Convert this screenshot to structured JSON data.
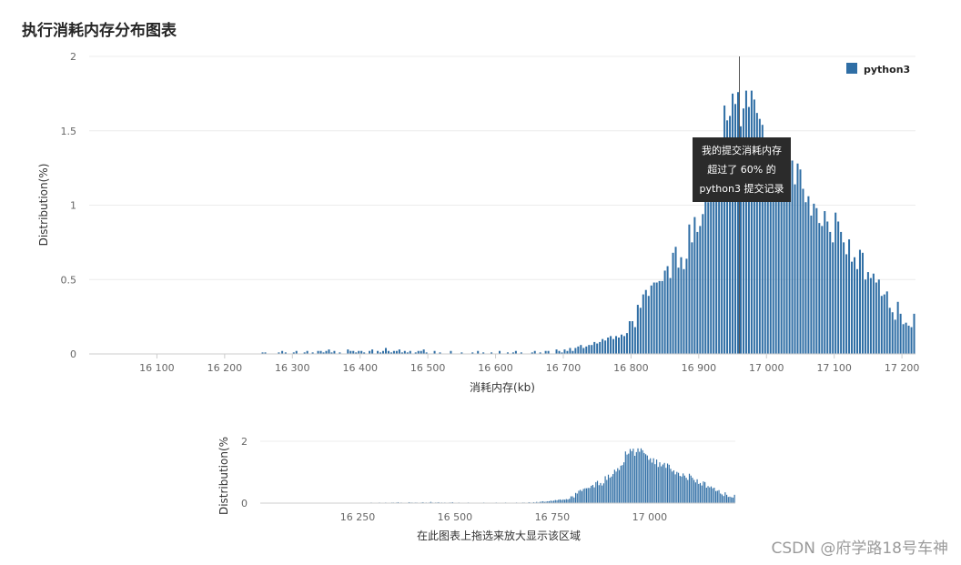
{
  "page_title": "执行消耗内存分布图表",
  "tooltip": {
    "line1": "我的提交消耗内存",
    "line2": "超过了 60% 的",
    "line3": "python3 提交记录"
  },
  "watermark": "CSDN @府学路18号车神",
  "colors": {
    "bar": "#2f6ea5",
    "grid": "#ececec",
    "axis": "#cccccc"
  },
  "chart_data": [
    {
      "type": "bar",
      "title": "执行消耗内存分布图表",
      "xlabel": "消耗内存(kb)",
      "ylabel": "Distribution(%)",
      "xlim": [
        16000,
        17220
      ],
      "ylim": [
        0,
        2
      ],
      "x_ticks": [
        16100,
        16200,
        16300,
        16400,
        16500,
        16600,
        16700,
        16800,
        16900,
        17000,
        17100,
        17200
      ],
      "x_tick_labels": [
        "16 100",
        "16 200",
        "16 300",
        "16 400",
        "16 500",
        "16 600",
        "16 700",
        "16 800",
        "16 900",
        "17 000",
        "17 100",
        "17 200"
      ],
      "y_ticks": [
        0,
        0.5,
        1,
        1.5,
        2
      ],
      "y_tick_labels": [
        "0",
        "0.5",
        "1",
        "1.5",
        "2"
      ],
      "marker_x": 16960,
      "legend": {
        "label": "python3",
        "position": "top-right"
      },
      "series": [
        {
          "name": "python3",
          "points": [
            [
              16256,
              0.01
            ],
            [
              16260,
              0.01
            ],
            [
              16280,
              0.01
            ],
            [
              16285,
              0.02
            ],
            [
              16290,
              0.01
            ],
            [
              16302,
              0.01
            ],
            [
              16306,
              0.02
            ],
            [
              16318,
              0.01
            ],
            [
              16322,
              0.02
            ],
            [
              16330,
              0.01
            ],
            [
              16338,
              0.02
            ],
            [
              16342,
              0.02
            ],
            [
              16346,
              0.01
            ],
            [
              16350,
              0.02
            ],
            [
              16354,
              0.03
            ],
            [
              16358,
              0.01
            ],
            [
              16362,
              0.02
            ],
            [
              16370,
              0.01
            ],
            [
              16382,
              0.03
            ],
            [
              16386,
              0.02
            ],
            [
              16390,
              0.02
            ],
            [
              16394,
              0.01
            ],
            [
              16398,
              0.02
            ],
            [
              16402,
              0.02
            ],
            [
              16406,
              0.01
            ],
            [
              16414,
              0.02
            ],
            [
              16418,
              0.03
            ],
            [
              16426,
              0.02
            ],
            [
              16430,
              0.01
            ],
            [
              16434,
              0.02
            ],
            [
              16438,
              0.04
            ],
            [
              16442,
              0.02
            ],
            [
              16446,
              0.01
            ],
            [
              16450,
              0.02
            ],
            [
              16454,
              0.02
            ],
            [
              16458,
              0.03
            ],
            [
              16462,
              0.01
            ],
            [
              16466,
              0.02
            ],
            [
              16470,
              0.01
            ],
            [
              16474,
              0.02
            ],
            [
              16482,
              0.01
            ],
            [
              16486,
              0.02
            ],
            [
              16490,
              0.02
            ],
            [
              16494,
              0.03
            ],
            [
              16498,
              0.01
            ],
            [
              16510,
              0.02
            ],
            [
              16518,
              0.01
            ],
            [
              16534,
              0.02
            ],
            [
              16550,
              0.01
            ],
            [
              16566,
              0.01
            ],
            [
              16574,
              0.02
            ],
            [
              16582,
              0.01
            ],
            [
              16594,
              0.01
            ],
            [
              16606,
              0.02
            ],
            [
              16618,
              0.01
            ],
            [
              16626,
              0.01
            ],
            [
              16630,
              0.02
            ],
            [
              16638,
              0.01
            ],
            [
              16654,
              0.01
            ],
            [
              16658,
              0.02
            ],
            [
              16666,
              0.01
            ],
            [
              16674,
              0.02
            ],
            [
              16678,
              0.02
            ],
            [
              16690,
              0.03
            ],
            [
              16694,
              0.02
            ],
            [
              16698,
              0.01
            ],
            [
              16702,
              0.03
            ],
            [
              16706,
              0.02
            ],
            [
              16710,
              0.04
            ],
            [
              16714,
              0.02
            ],
            [
              16718,
              0.04
            ],
            [
              16722,
              0.05
            ],
            [
              16726,
              0.06
            ],
            [
              16730,
              0.04
            ],
            [
              16734,
              0.05
            ],
            [
              16738,
              0.06
            ],
            [
              16742,
              0.06
            ],
            [
              16746,
              0.08
            ],
            [
              16750,
              0.07
            ],
            [
              16754,
              0.08
            ],
            [
              16758,
              0.1
            ],
            [
              16762,
              0.09
            ],
            [
              16766,
              0.11
            ],
            [
              16770,
              0.12
            ],
            [
              16774,
              0.1
            ],
            [
              16778,
              0.12
            ],
            [
              16782,
              0.11
            ],
            [
              16786,
              0.13
            ],
            [
              16790,
              0.12
            ],
            [
              16794,
              0.14
            ],
            [
              16798,
              0.22
            ],
            [
              16802,
              0.22
            ],
            [
              16806,
              0.18
            ],
            [
              16810,
              0.33
            ],
            [
              16814,
              0.31
            ],
            [
              16818,
              0.4
            ],
            [
              16822,
              0.43
            ],
            [
              16826,
              0.39
            ],
            [
              16830,
              0.46
            ],
            [
              16834,
              0.48
            ],
            [
              16838,
              0.48
            ],
            [
              16842,
              0.49
            ],
            [
              16846,
              0.49
            ],
            [
              16850,
              0.56
            ],
            [
              16854,
              0.59
            ],
            [
              16858,
              0.51
            ],
            [
              16862,
              0.68
            ],
            [
              16866,
              0.72
            ],
            [
              16870,
              0.58
            ],
            [
              16874,
              0.65
            ],
            [
              16878,
              0.57
            ],
            [
              16882,
              0.64
            ],
            [
              16886,
              0.87
            ],
            [
              16890,
              0.75
            ],
            [
              16894,
              0.92
            ],
            [
              16898,
              0.82
            ],
            [
              16902,
              0.86
            ],
            [
              16906,
              0.94
            ],
            [
              16910,
              1.08
            ],
            [
              16914,
              1.02
            ],
            [
              16918,
              1.13
            ],
            [
              16922,
              1.07
            ],
            [
              16926,
              1.21
            ],
            [
              16930,
              1.23
            ],
            [
              16934,
              1.32
            ],
            [
              16938,
              1.67
            ],
            [
              16942,
              1.57
            ],
            [
              16946,
              1.6
            ],
            [
              16950,
              1.75
            ],
            [
              16954,
              1.68
            ],
            [
              16958,
              1.76
            ],
            [
              16962,
              1.53
            ],
            [
              16966,
              1.65
            ],
            [
              16970,
              1.77
            ],
            [
              16974,
              1.66
            ],
            [
              16978,
              1.77
            ],
            [
              16982,
              1.71
            ],
            [
              16986,
              1.62
            ],
            [
              16990,
              1.58
            ],
            [
              16994,
              1.54
            ],
            [
              16998,
              1.4
            ],
            [
              17002,
              1.45
            ],
            [
              17006,
              1.31
            ],
            [
              17010,
              1.45
            ],
            [
              17014,
              1.26
            ],
            [
              17018,
              1.41
            ],
            [
              17022,
              1.17
            ],
            [
              17026,
              1.32
            ],
            [
              17030,
              1.19
            ],
            [
              17034,
              1.25
            ],
            [
              17038,
              1.3
            ],
            [
              17042,
              1.14
            ],
            [
              17046,
              1.28
            ],
            [
              17050,
              1.24
            ],
            [
              17054,
              1.11
            ],
            [
              17058,
              1.02
            ],
            [
              17062,
              1.06
            ],
            [
              17066,
              0.93
            ],
            [
              17070,
              1.01
            ],
            [
              17074,
              0.98
            ],
            [
              17078,
              0.88
            ],
            [
              17082,
              0.86
            ],
            [
              17086,
              0.96
            ],
            [
              17090,
              0.89
            ],
            [
              17094,
              0.82
            ],
            [
              17098,
              0.75
            ],
            [
              17102,
              0.95
            ],
            [
              17106,
              0.89
            ],
            [
              17110,
              0.82
            ],
            [
              17114,
              0.75
            ],
            [
              17118,
              0.67
            ],
            [
              17122,
              0.77
            ],
            [
              17126,
              0.62
            ],
            [
              17130,
              0.65
            ],
            [
              17134,
              0.57
            ],
            [
              17138,
              0.7
            ],
            [
              17142,
              0.68
            ],
            [
              17146,
              0.5
            ],
            [
              17150,
              0.55
            ],
            [
              17154,
              0.51
            ],
            [
              17158,
              0.54
            ],
            [
              17162,
              0.48
            ],
            [
              17166,
              0.5
            ],
            [
              17170,
              0.39
            ],
            [
              17174,
              0.4
            ],
            [
              17178,
              0.42
            ],
            [
              17182,
              0.31
            ],
            [
              17186,
              0.28
            ],
            [
              17190,
              0.23
            ],
            [
              17194,
              0.35
            ],
            [
              17198,
              0.27
            ],
            [
              17202,
              0.2
            ],
            [
              17206,
              0.21
            ],
            [
              17210,
              0.19
            ],
            [
              17214,
              0.18
            ],
            [
              17218,
              0.27
            ]
          ]
        }
      ]
    },
    {
      "type": "bar",
      "title": "",
      "xlabel": "在此图表上拖选来放大显示该区域",
      "ylabel": "Distribution(%",
      "xlim": [
        16000,
        17220
      ],
      "ylim": [
        0,
        2
      ],
      "x_ticks": [
        16250,
        16500,
        16750,
        17000
      ],
      "x_tick_labels": [
        "16 250",
        "16 500",
        "16 750",
        "17 000"
      ],
      "y_ticks": [
        0,
        2
      ],
      "y_tick_labels": [
        "0",
        "2"
      ],
      "series_ref": "python3"
    }
  ]
}
